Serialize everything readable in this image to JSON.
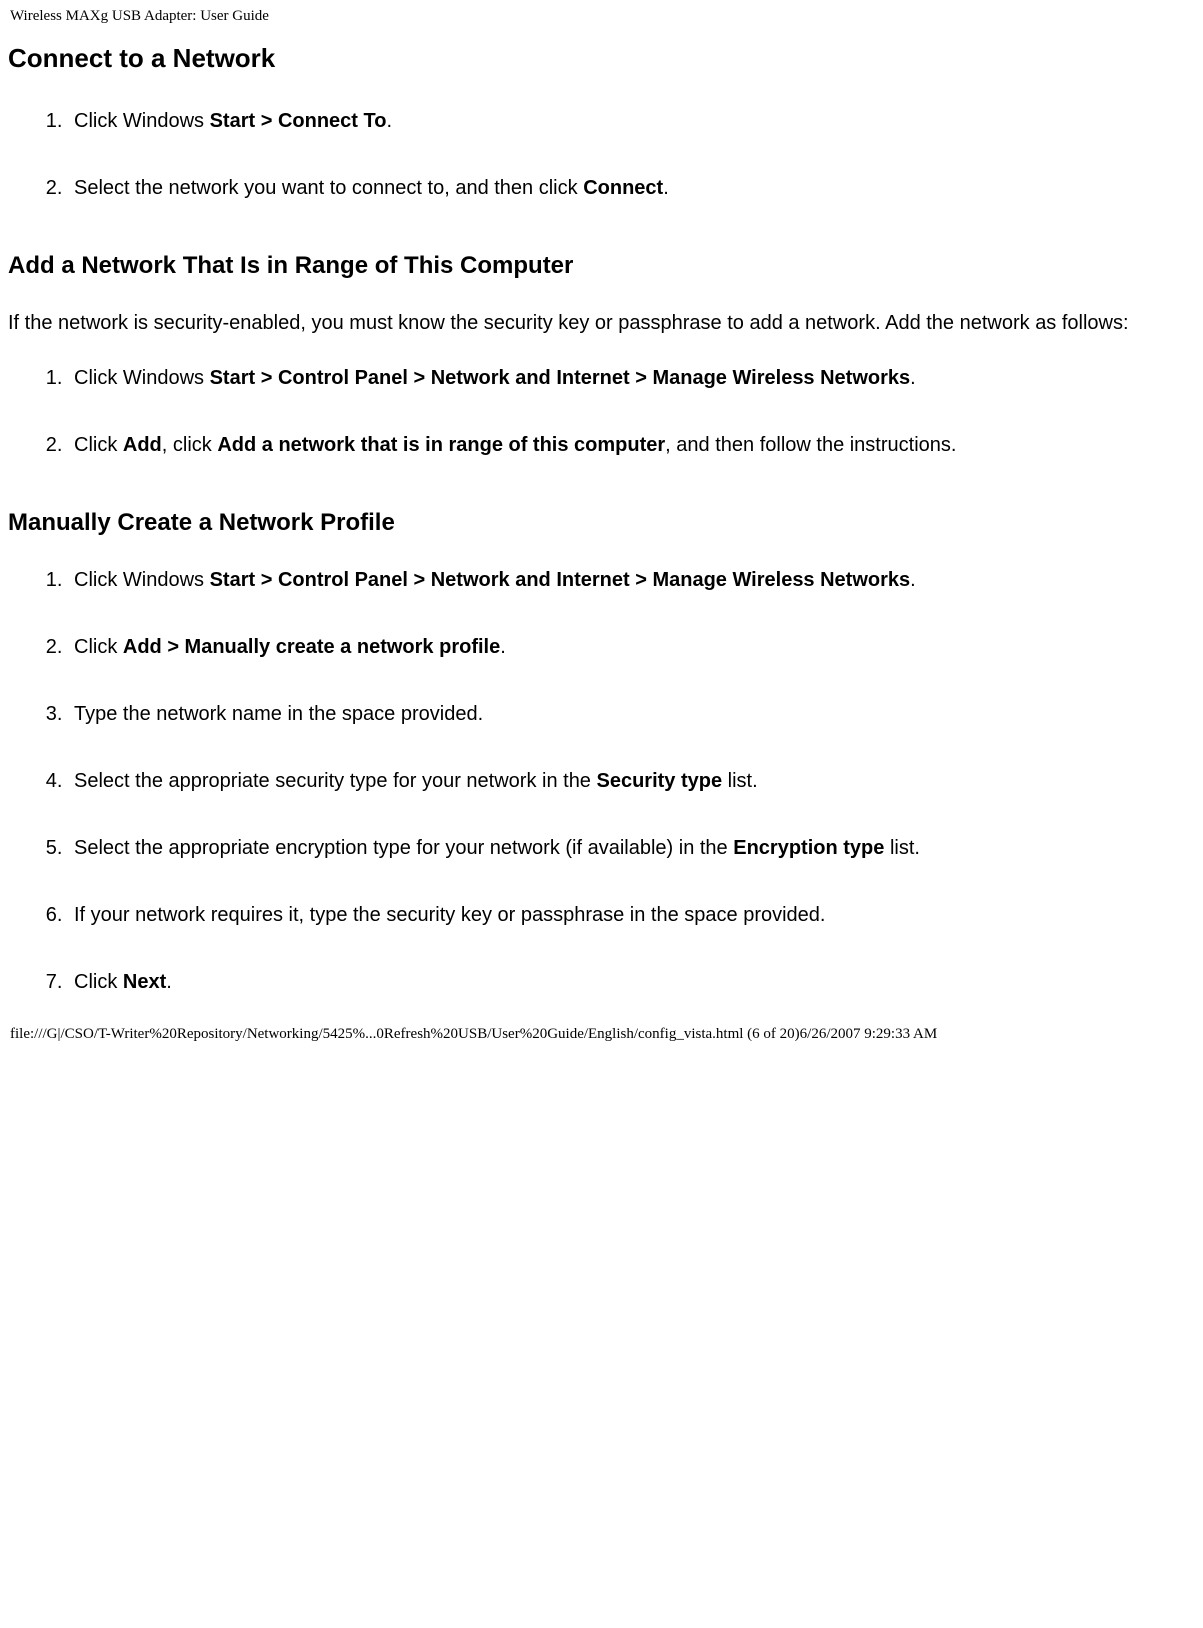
{
  "header": "Wireless MAXg USB Adapter: User Guide",
  "section1": {
    "title": "Connect to a Network",
    "steps": {
      "s1": {
        "pre": "Click Windows ",
        "bold": "Start > Connect To",
        "post": "."
      },
      "s2": {
        "pre": "Select the network you want to connect to, and then click ",
        "bold": "Connect",
        "post": "."
      }
    }
  },
  "section2": {
    "title": "Add a Network That Is in Range of This Computer",
    "intro": "If the network is security-enabled, you must know the security key or passphrase to add a network. Add the network as follows:",
    "steps": {
      "s1": {
        "pre": "Click Windows ",
        "bold": "Start > Control Panel > Network and Internet > Manage Wireless Networks",
        "post": "."
      },
      "s2": {
        "a": "Click ",
        "b": "Add",
        "c": ", click ",
        "d": "Add a network that is in range of this computer",
        "e": ", and then follow the instructions."
      }
    }
  },
  "section3": {
    "title": "Manually Create a Network Profile",
    "steps": {
      "s1": {
        "pre": "Click Windows ",
        "bold": "Start > Control Panel > Network and Internet > Manage Wireless Networks",
        "post": "."
      },
      "s2": {
        "pre": "Click ",
        "bold": "Add > Manually create a network profile",
        "post": "."
      },
      "s3": {
        "text": "Type the network name in the space provided."
      },
      "s4": {
        "pre": "Select the appropriate security type for your network in the ",
        "bold": "Security type",
        "post": " list."
      },
      "s5": {
        "pre": "Select the appropriate encryption type for your network (if available) in the ",
        "bold": "Encryption type",
        "post": " list."
      },
      "s6": {
        "text": "If your network requires it, type the security key or passphrase in the space provided."
      },
      "s7": {
        "pre": "Click ",
        "bold": "Next",
        "post": "."
      }
    }
  },
  "footer": "file:///G|/CSO/T-Writer%20Repository/Networking/5425%...0Refresh%20USB/User%20Guide/English/config_vista.html (6 of 20)6/26/2007 9:29:33 AM"
}
